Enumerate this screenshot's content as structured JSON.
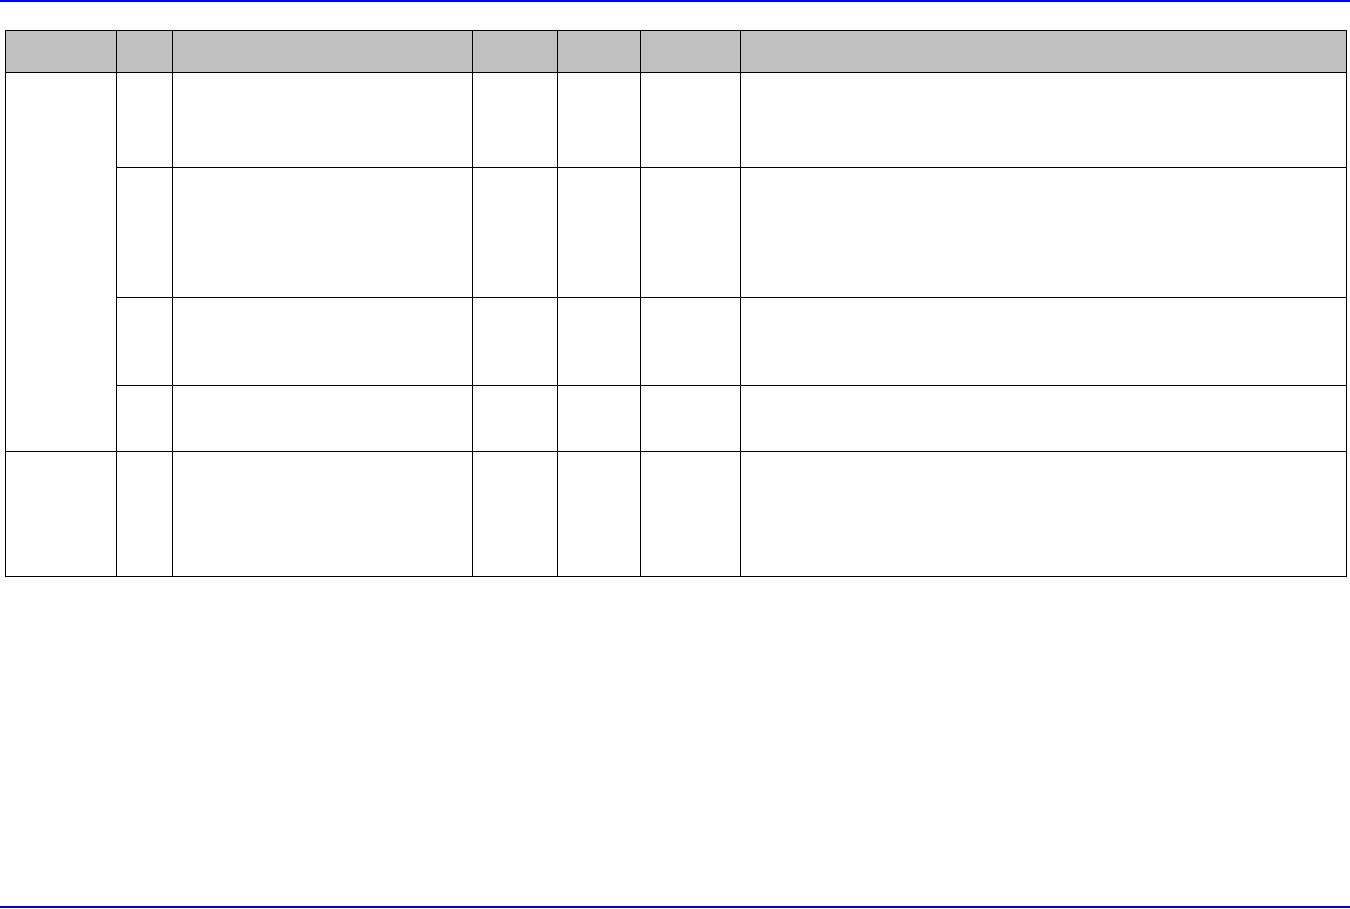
{
  "colors": {
    "header_fill": "#c0c0c0",
    "page_rule": "#0000ff",
    "border": "#000000"
  },
  "table": {
    "headers": [
      "",
      "",
      "",
      "",
      "",
      "",
      ""
    ],
    "groups": [
      {
        "label": "",
        "rows": [
          [
            "",
            "",
            "",
            "",
            "",
            ""
          ],
          [
            "",
            "",
            "",
            "",
            "",
            ""
          ],
          [
            "",
            "",
            "",
            "",
            "",
            ""
          ],
          [
            "",
            "",
            "",
            "",
            "",
            ""
          ]
        ]
      },
      {
        "label": "",
        "rows": [
          [
            "",
            "",
            "",
            "",
            "",
            ""
          ]
        ]
      }
    ]
  }
}
